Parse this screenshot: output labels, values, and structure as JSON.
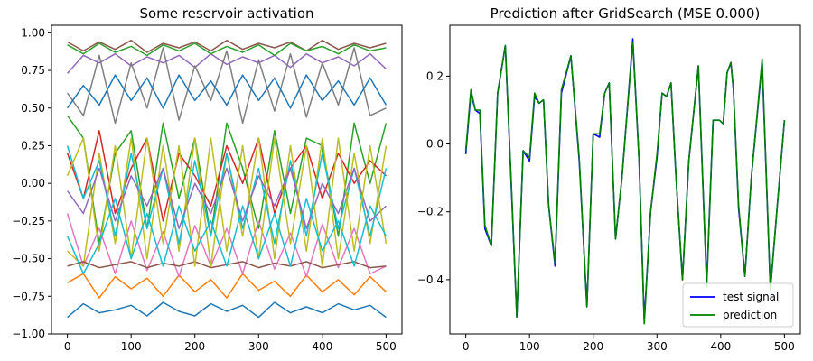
{
  "chart_data": [
    {
      "type": "line",
      "title": "Some reservoir activation",
      "xlabel": "",
      "ylabel": "",
      "xlim": [
        -25,
        525
      ],
      "ylim": [
        -1.0,
        1.05
      ],
      "xticks": [
        0,
        100,
        200,
        300,
        400,
        500
      ],
      "xtick_labels": [
        "0",
        "100",
        "200",
        "300",
        "400",
        "500"
      ],
      "yticks": [
        -1.0,
        -0.75,
        -0.5,
        -0.25,
        0.0,
        0.25,
        0.5,
        0.75,
        1.0
      ],
      "ytick_labels": [
        "−1.00",
        "−0.75",
        "−0.50",
        "−0.25",
        "0.00",
        "0.25",
        "0.50",
        "0.75",
        "1.00"
      ],
      "grid": false,
      "series_note_values": "approximate sampled traces (x = 0..500)",
      "series": [
        {
          "color": "#1f77b4",
          "x": [
            0,
            25,
            50,
            75,
            100,
            125,
            150,
            175,
            200,
            225,
            250,
            275,
            300,
            325,
            350,
            375,
            400,
            425,
            450,
            475,
            500
          ],
          "values": [
            -0.89,
            -0.8,
            -0.86,
            -0.84,
            -0.81,
            -0.88,
            -0.79,
            -0.85,
            -0.88,
            -0.8,
            -0.85,
            -0.81,
            -0.89,
            -0.79,
            -0.86,
            -0.82,
            -0.86,
            -0.8,
            -0.84,
            -0.81,
            -0.89
          ]
        },
        {
          "color": "#ff7f0e",
          "x": [
            0,
            25,
            50,
            75,
            100,
            125,
            150,
            175,
            200,
            225,
            250,
            275,
            300,
            325,
            350,
            375,
            400,
            425,
            450,
            475,
            500
          ],
          "values": [
            -0.66,
            -0.6,
            -0.76,
            -0.62,
            -0.7,
            -0.63,
            -0.75,
            -0.61,
            -0.72,
            -0.64,
            -0.76,
            -0.6,
            -0.71,
            -0.65,
            -0.75,
            -0.61,
            -0.72,
            -0.64,
            -0.74,
            -0.62,
            -0.72
          ]
        },
        {
          "color": "#2ca02c",
          "x": [
            0,
            25,
            50,
            75,
            100,
            125,
            150,
            175,
            200,
            225,
            250,
            275,
            300,
            325,
            350,
            375,
            400,
            425,
            450,
            475,
            500
          ],
          "values": [
            0.45,
            0.3,
            -0.4,
            0.2,
            0.35,
            -0.3,
            0.4,
            -0.1,
            0.3,
            -0.35,
            0.4,
            0.1,
            -0.3,
            0.35,
            -0.2,
            0.3,
            0.25,
            -0.35,
            0.4,
            0.0,
            0.4
          ]
        },
        {
          "color": "#d62728",
          "x": [
            0,
            25,
            50,
            75,
            100,
            125,
            150,
            175,
            200,
            225,
            250,
            275,
            300,
            325,
            350,
            375,
            400,
            425,
            450,
            475,
            500
          ],
          "values": [
            0.2,
            -0.1,
            0.35,
            -0.2,
            0.1,
            0.3,
            -0.25,
            0.2,
            0.05,
            -0.15,
            0.25,
            0.0,
            0.3,
            -0.2,
            0.1,
            0.25,
            -0.1,
            0.2,
            0.0,
            0.15,
            0.05
          ]
        },
        {
          "color": "#9467bd",
          "x": [
            0,
            25,
            50,
            75,
            100,
            125,
            150,
            175,
            200,
            225,
            250,
            275,
            300,
            325,
            350,
            375,
            400,
            425,
            450,
            475,
            500
          ],
          "values": [
            0.73,
            0.85,
            0.8,
            0.86,
            0.78,
            0.84,
            0.8,
            0.85,
            0.77,
            0.86,
            0.79,
            0.84,
            0.8,
            0.85,
            0.77,
            0.86,
            0.8,
            0.84,
            0.78,
            0.86,
            0.76
          ]
        },
        {
          "color": "#8c564b",
          "x": [
            0,
            25,
            50,
            75,
            100,
            125,
            150,
            175,
            200,
            225,
            250,
            275,
            300,
            325,
            350,
            375,
            400,
            425,
            450,
            475,
            500
          ],
          "values": [
            0.94,
            0.88,
            0.94,
            0.89,
            0.95,
            0.87,
            0.93,
            0.9,
            0.94,
            0.88,
            0.95,
            0.89,
            0.93,
            0.9,
            0.94,
            0.88,
            0.95,
            0.89,
            0.93,
            0.9,
            0.93
          ]
        },
        {
          "color": "#e377c2",
          "x": [
            0,
            25,
            50,
            75,
            100,
            125,
            150,
            175,
            200,
            225,
            250,
            275,
            300,
            325,
            350,
            375,
            400,
            425,
            450,
            475,
            500
          ],
          "values": [
            -0.2,
            -0.55,
            -0.3,
            -0.6,
            -0.25,
            -0.58,
            -0.32,
            -0.62,
            -0.28,
            -0.55,
            -0.3,
            -0.6,
            -0.25,
            -0.57,
            -0.33,
            -0.62,
            -0.27,
            -0.56,
            -0.3,
            -0.6,
            -0.55
          ]
        },
        {
          "color": "#7f7f7f",
          "x": [
            0,
            25,
            50,
            75,
            100,
            125,
            150,
            175,
            200,
            225,
            250,
            275,
            300,
            325,
            350,
            375,
            400,
            425,
            450,
            475,
            500
          ],
          "values": [
            0.6,
            0.45,
            0.85,
            0.4,
            0.8,
            0.5,
            0.9,
            0.42,
            0.78,
            0.55,
            0.88,
            0.4,
            0.82,
            0.48,
            0.86,
            0.44,
            0.8,
            0.52,
            0.9,
            0.45,
            0.5
          ]
        },
        {
          "color": "#bcbd22",
          "x": [
            0,
            25,
            50,
            75,
            100,
            125,
            150,
            175,
            200,
            225,
            250,
            275,
            300,
            325,
            350,
            375,
            400,
            425,
            450,
            475,
            500
          ],
          "values": [
            -0.45,
            -0.55,
            0.2,
            -0.4,
            0.3,
            -0.5,
            0.25,
            -0.45,
            0.3,
            -0.55,
            0.2,
            -0.35,
            0.3,
            -0.5,
            0.25,
            -0.45,
            0.3,
            -0.5,
            0.2,
            -0.4,
            0.25
          ]
        },
        {
          "color": "#17becf",
          "x": [
            0,
            25,
            50,
            75,
            100,
            125,
            150,
            175,
            200,
            225,
            250,
            275,
            300,
            325,
            350,
            375,
            400,
            425,
            450,
            475,
            500
          ],
          "values": [
            0.25,
            -0.1,
            0.15,
            -0.35,
            0.2,
            -0.3,
            0.1,
            -0.4,
            0.15,
            -0.35,
            0.2,
            -0.3,
            0.1,
            -0.4,
            0.15,
            -0.35,
            0.2,
            -0.3,
            0.1,
            -0.35,
            0.1
          ]
        },
        {
          "color": "#1f77b4",
          "x": [
            0,
            25,
            50,
            75,
            100,
            125,
            150,
            175,
            200,
            225,
            250,
            275,
            300,
            325,
            350,
            375,
            400,
            425,
            450,
            475,
            500
          ],
          "values": [
            0.5,
            0.65,
            0.52,
            0.72,
            0.55,
            0.7,
            0.5,
            0.72,
            0.55,
            0.68,
            0.52,
            0.72,
            0.55,
            0.7,
            0.5,
            0.72,
            0.55,
            0.68,
            0.52,
            0.7,
            0.52
          ]
        },
        {
          "color": "#2ca02c",
          "x": [
            0,
            25,
            50,
            75,
            100,
            125,
            150,
            175,
            200,
            225,
            250,
            275,
            300,
            325,
            350,
            375,
            400,
            425,
            450,
            475,
            500
          ],
          "values": [
            0.92,
            0.86,
            0.93,
            0.87,
            0.91,
            0.85,
            0.92,
            0.88,
            0.93,
            0.86,
            0.91,
            0.87,
            0.92,
            0.85,
            0.93,
            0.88,
            0.91,
            0.86,
            0.92,
            0.88,
            0.9
          ]
        },
        {
          "color": "#9467bd",
          "x": [
            0,
            25,
            50,
            75,
            100,
            125,
            150,
            175,
            200,
            225,
            250,
            275,
            300,
            325,
            350,
            375,
            400,
            425,
            450,
            475,
            500
          ],
          "values": [
            -0.05,
            -0.2,
            0.1,
            -0.25,
            0.05,
            -0.15,
            0.1,
            -0.3,
            0.0,
            -0.2,
            0.1,
            -0.25,
            0.05,
            -0.15,
            0.1,
            -0.3,
            0.0,
            -0.2,
            0.1,
            -0.25,
            -0.15
          ]
        },
        {
          "color": "#8c564b",
          "x": [
            0,
            25,
            50,
            75,
            100,
            125,
            150,
            175,
            200,
            225,
            250,
            275,
            300,
            325,
            350,
            375,
            400,
            425,
            450,
            475,
            500
          ],
          "values": [
            -0.55,
            -0.52,
            -0.56,
            -0.54,
            -0.52,
            -0.56,
            -0.53,
            -0.55,
            -0.52,
            -0.56,
            -0.54,
            -0.52,
            -0.56,
            -0.53,
            -0.55,
            -0.52,
            -0.56,
            -0.54,
            -0.52,
            -0.56,
            -0.55
          ]
        },
        {
          "color": "#bcbd22",
          "x": [
            0,
            25,
            50,
            75,
            100,
            125,
            150,
            175,
            200,
            225,
            250,
            275,
            300,
            325,
            350,
            375,
            400,
            425,
            450,
            475,
            500
          ],
          "values": [
            0.05,
            0.3,
            -0.45,
            0.25,
            -0.5,
            0.3,
            -0.4,
            0.25,
            -0.55,
            0.3,
            -0.45,
            0.25,
            -0.5,
            0.3,
            -0.4,
            0.25,
            -0.55,
            0.3,
            -0.45,
            0.25,
            -0.4
          ]
        },
        {
          "color": "#17becf",
          "x": [
            0,
            25,
            50,
            75,
            100,
            125,
            150,
            175,
            200,
            225,
            250,
            275,
            300,
            325,
            350,
            375,
            400,
            425,
            450,
            475,
            500
          ],
          "values": [
            -0.35,
            -0.6,
            -0.4,
            -0.1,
            -0.5,
            -0.2,
            -0.55,
            -0.15,
            -0.45,
            -0.25,
            -0.55,
            -0.15,
            -0.5,
            -0.2,
            -0.55,
            -0.1,
            -0.45,
            -0.25,
            -0.55,
            -0.15,
            -0.35
          ]
        }
      ]
    },
    {
      "type": "line",
      "title": "Prediction after GridSearch (MSE 0.000)",
      "xlabel": "",
      "ylabel": "",
      "xlim": [
        -25,
        525
      ],
      "ylim": [
        -0.56,
        0.35
      ],
      "xticks": [
        0,
        100,
        200,
        300,
        400,
        500
      ],
      "xtick_labels": [
        "0",
        "100",
        "200",
        "300",
        "400",
        "500"
      ],
      "yticks": [
        -0.4,
        -0.2,
        0.0,
        0.2
      ],
      "ytick_labels": [
        "−0.4",
        "−0.2",
        "0.0",
        "0.2"
      ],
      "grid": false,
      "legend_position": "lower-right",
      "x": [
        0,
        8,
        15,
        22,
        30,
        40,
        50,
        62,
        72,
        80,
        90,
        100,
        108,
        115,
        122,
        130,
        140,
        150,
        165,
        178,
        190,
        200,
        210,
        218,
        225,
        235,
        245,
        262,
        272,
        280,
        290,
        300,
        308,
        315,
        322,
        330,
        340,
        350,
        365,
        378,
        388,
        398,
        404,
        410,
        416,
        420,
        428,
        438,
        448,
        465,
        478,
        488,
        500
      ],
      "series": [
        {
          "name": "test signal",
          "color": "#0000ff",
          "values": [
            -0.03,
            0.15,
            0.1,
            0.09,
            -0.25,
            -0.3,
            0.15,
            0.29,
            -0.15,
            -0.51,
            -0.02,
            -0.05,
            0.14,
            0.12,
            0.13,
            -0.18,
            -0.36,
            0.15,
            0.26,
            -0.05,
            -0.48,
            0.03,
            0.02,
            0.15,
            0.18,
            -0.28,
            -0.1,
            0.31,
            -0.05,
            -0.52,
            -0.2,
            -0.04,
            0.15,
            0.14,
            0.18,
            -0.1,
            -0.4,
            -0.05,
            0.23,
            -0.41,
            0.07,
            0.07,
            0.06,
            0.21,
            0.24,
            0.16,
            -0.19,
            -0.39,
            -0.1,
            0.24,
            -0.43,
            -0.2,
            0.07
          ]
        },
        {
          "name": "prediction",
          "color": "#008000",
          "values": [
            -0.02,
            0.16,
            0.1,
            0.1,
            -0.24,
            -0.3,
            0.15,
            0.29,
            -0.14,
            -0.51,
            -0.02,
            -0.04,
            0.15,
            0.12,
            0.13,
            -0.18,
            -0.35,
            0.16,
            0.26,
            -0.04,
            -0.48,
            0.03,
            0.03,
            0.15,
            0.18,
            -0.28,
            -0.1,
            0.3,
            -0.05,
            -0.53,
            -0.2,
            -0.03,
            0.15,
            0.14,
            0.18,
            -0.1,
            -0.4,
            -0.05,
            0.23,
            -0.42,
            0.07,
            0.07,
            0.06,
            0.21,
            0.24,
            0.16,
            -0.18,
            -0.39,
            -0.1,
            0.25,
            -0.43,
            -0.2,
            0.07
          ]
        }
      ]
    }
  ]
}
